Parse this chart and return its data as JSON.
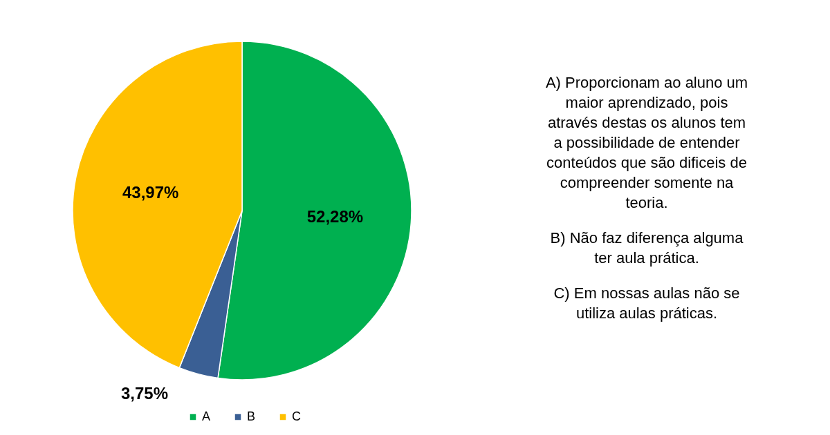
{
  "chart_data": {
    "type": "pie",
    "categories": [
      "A",
      "B",
      "C"
    ],
    "values": [
      52.28,
      3.75,
      43.97
    ],
    "colors": [
      "#00b050",
      "#3a5f94",
      "#ffc000"
    ],
    "value_labels": [
      "52,28%",
      "3,75%",
      "43,97%"
    ],
    "legend": "bottom",
    "annotations": [
      "A) Proporcionam ao aluno um maior aprendizado, pois através destas os alunos tem a possibilidade de entender conteúdos que são dificeis de compreender somente na teoria.",
      "B) Não faz diferença alguma ter aula prática.",
      "C) Em nossas aulas não se utiliza aulas práticas."
    ]
  }
}
